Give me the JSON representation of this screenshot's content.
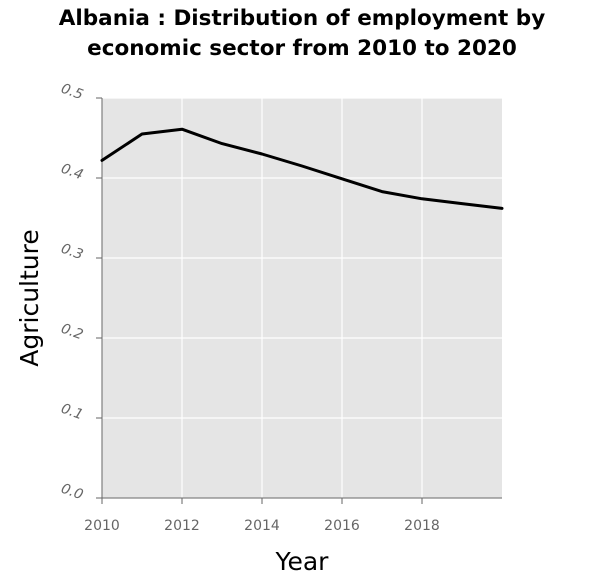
{
  "chart_data": {
    "type": "line",
    "title_lines": [
      "Albania : Distribution of employment by",
      "economic sector from 2010 to 2020"
    ],
    "xlabel": "Year",
    "ylabel": "Agriculture",
    "xlim": [
      2010,
      2020
    ],
    "ylim": [
      0.0,
      0.5
    ],
    "x_ticks": [
      2010,
      2012,
      2014,
      2016,
      2018
    ],
    "x_tick_labels": [
      "2010",
      "2012",
      "2014",
      "2016",
      "2018"
    ],
    "y_ticks": [
      0.0,
      0.1,
      0.2,
      0.3,
      0.4,
      0.5
    ],
    "y_tick_labels": [
      "0.0",
      "0.1",
      "0.2",
      "0.3",
      "0.4",
      "0.5"
    ],
    "grid": true,
    "series": [
      {
        "color": "#000000",
        "x": [
          2010,
          2011,
          2012,
          2013,
          2014,
          2015,
          2016,
          2017,
          2018,
          2019,
          2020
        ],
        "y": [
          0.422,
          0.455,
          0.461,
          0.443,
          0.43,
          0.415,
          0.399,
          0.383,
          0.374,
          0.368,
          0.362
        ]
      }
    ]
  },
  "colors": {
    "plot_background": "#e5e5e5",
    "grid": "#ffffff",
    "line": "#000000",
    "tick": "#666666"
  }
}
